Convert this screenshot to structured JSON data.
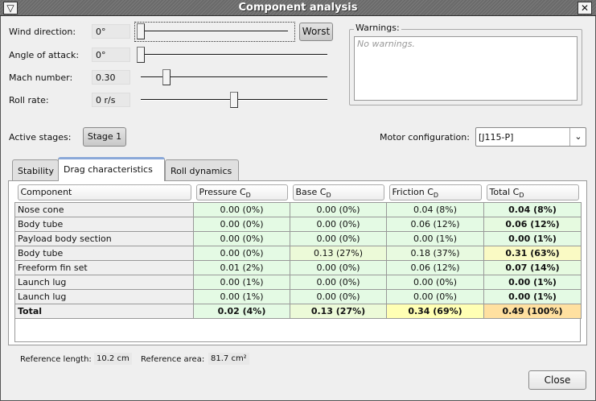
{
  "window": {
    "title": "Component analysis",
    "menu_icon": "triangle-down-icon",
    "close_icon": "close-icon"
  },
  "params": [
    {
      "label": "Wind direction:",
      "value": "0°",
      "slider": 0.0
    },
    {
      "label": "Angle of attack:",
      "value": "0°",
      "slider": 0.0
    },
    {
      "label": "Mach number:",
      "value": "0.30",
      "slider": 0.12
    },
    {
      "label": "Roll rate:",
      "value": "0 r/s",
      "slider": 0.5
    }
  ],
  "worst_label": "Worst",
  "warnings": {
    "label": "Warnings:",
    "text": "No warnings."
  },
  "stages": {
    "label": "Active stages:",
    "button": "Stage 1"
  },
  "motor": {
    "label": "Motor configuration:",
    "value": "[J115-P]"
  },
  "tabs": [
    {
      "label": "Stability"
    },
    {
      "label": "Drag characteristics",
      "active": true
    },
    {
      "label": "Roll dynamics"
    }
  ],
  "table": {
    "headers": [
      {
        "t": "Component",
        "s": ""
      },
      {
        "t": "Pressure C",
        "s": "D"
      },
      {
        "t": "Base C",
        "s": "D"
      },
      {
        "t": "Friction C",
        "s": "D"
      },
      {
        "t": "Total C",
        "s": "D"
      }
    ],
    "rows": [
      {
        "cells": [
          "Nose cone",
          "0.00 (0%)",
          "0.00 (0%)",
          "0.04 (8%)",
          "0.04 (8%)"
        ],
        "colors": [
          "#e4fae4",
          "#e4fae4",
          "#e4fae4",
          "#e4fae4"
        ]
      },
      {
        "cells": [
          "Body tube",
          "0.00 (0%)",
          "0.00 (0%)",
          "0.06 (12%)",
          "0.06 (12%)"
        ],
        "colors": [
          "#e4fae4",
          "#e4fae4",
          "#e4fae4",
          "#e6fae0"
        ]
      },
      {
        "cells": [
          "Payload body section",
          "0.00 (0%)",
          "0.00 (0%)",
          "0.00 (1%)",
          "0.00 (1%)"
        ],
        "colors": [
          "#e4fae4",
          "#e4fae4",
          "#e4fae4",
          "#e4fae4"
        ]
      },
      {
        "cells": [
          "Body tube",
          "0.00 (0%)",
          "0.13 (27%)",
          "0.18 (37%)",
          "0.31 (63%)"
        ],
        "colors": [
          "#e4fae4",
          "#ecfad8",
          "#e8fae0",
          "#fafac4"
        ]
      },
      {
        "cells": [
          "Freeform fin set",
          "0.01 (2%)",
          "0.00 (0%)",
          "0.06 (12%)",
          "0.07 (14%)"
        ],
        "colors": [
          "#e4fae4",
          "#e4fae4",
          "#e4fae4",
          "#e6fae0"
        ]
      },
      {
        "cells": [
          "Launch lug",
          "0.00 (1%)",
          "0.00 (0%)",
          "0.00 (0%)",
          "0.00 (1%)"
        ],
        "colors": [
          "#e4fae4",
          "#e4fae4",
          "#e4fae4",
          "#e4fae4"
        ]
      },
      {
        "cells": [
          "Launch lug",
          "0.00 (1%)",
          "0.00 (0%)",
          "0.00 (0%)",
          "0.00 (1%)"
        ],
        "colors": [
          "#e4fae4",
          "#e4fae4",
          "#e4fae4",
          "#e4fae4"
        ]
      }
    ],
    "total": {
      "cells": [
        "Total",
        "0.02 (4%)",
        "0.13 (27%)",
        "0.34 (69%)",
        "0.49 (100%)"
      ],
      "colors": [
        "#e4fae4",
        "#ecfad8",
        "#ffffb4",
        "#ffe0a0"
      ]
    }
  },
  "reference": {
    "length_label": "Reference length:",
    "length": "10.2 cm",
    "area_label": "Reference area:",
    "area": "81.7 cm²"
  },
  "close_label": "Close"
}
